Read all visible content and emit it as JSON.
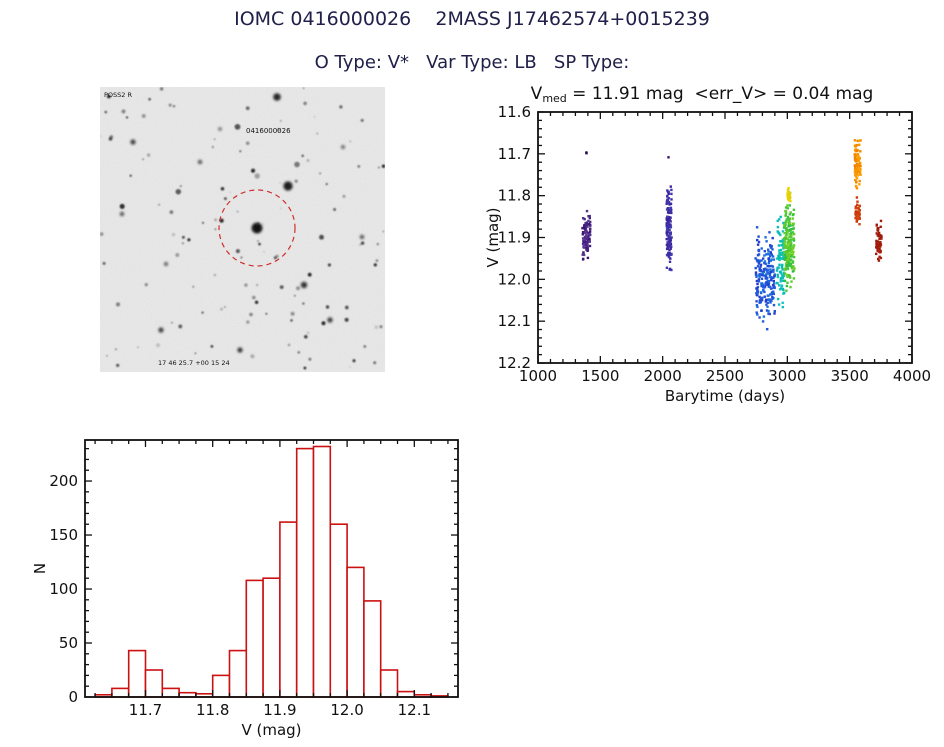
{
  "header": {
    "title": "IOMC 0416000026    2MASS J17462574+0015239",
    "subtitle": "O Type: V*   Var Type: LB   SP Type:"
  },
  "finder": {
    "label_top_left": "POSS2 R",
    "source_label": "0416000026",
    "label_bottom": "17 46 25.7  +00 15 24",
    "circle_color": "#cf2f2f"
  },
  "chart_data": [
    {
      "name": "lightcurve",
      "type": "scatter",
      "title_var": "V",
      "title_var_sub": "med",
      "title_rest": " = 11.91 mag  <err_V> = 0.04 mag",
      "xlabel": "Barytime (days)",
      "ylabel": "V (mag)",
      "x_range": [
        1000,
        4000
      ],
      "y_range": [
        11.6,
        12.2
      ],
      "y_inverted_magnitude_axis": true,
      "x_ticks": [
        1000,
        1500,
        2000,
        2500,
        3000,
        3500,
        4000
      ],
      "x_tick_labels": [
        "1000",
        "1500",
        "2000",
        "2500",
        "3000",
        "3500",
        "4000"
      ],
      "y_ticks": [
        11.6,
        11.7,
        11.8,
        11.9,
        12.0,
        12.1,
        12.2
      ],
      "y_tick_labels": [
        "11.6",
        "11.7",
        "11.8",
        "11.9",
        "12.0",
        "12.1",
        "12.2"
      ],
      "x_minor_step": 100,
      "y_minor_step": 0.02,
      "clusters": [
        {
          "x": [
            1357,
            1420
          ],
          "y": [
            11.815,
            11.975
          ],
          "n": 95,
          "colors": [
            "#38106e",
            "#5a3c96"
          ]
        },
        {
          "x": [
            1383,
            1396
          ],
          "y": [
            11.693,
            11.703
          ],
          "n": 2,
          "colors": [
            "#2a0a50",
            "#2a0a50"
          ]
        },
        {
          "x": [
            2032,
            2072
          ],
          "y": [
            11.752,
            12.012
          ],
          "n": 120,
          "colors": [
            "#3c1e96",
            "#4141b4"
          ]
        },
        {
          "x": [
            2042,
            2052
          ],
          "y": [
            11.705,
            11.715
          ],
          "n": 1,
          "colors": [
            "#38106e",
            "#38106e"
          ]
        },
        {
          "x": [
            2745,
            2900
          ],
          "y": [
            11.852,
            12.135
          ],
          "n": 210,
          "colors": [
            "#2332cd",
            "#1e78e1"
          ]
        },
        {
          "x": [
            2915,
            2975
          ],
          "y": [
            11.82,
            12.105
          ],
          "n": 90,
          "colors": [
            "#00b9ad",
            "#19c3c3"
          ]
        },
        {
          "x": [
            2975,
            3058
          ],
          "y": [
            11.765,
            12.06
          ],
          "n": 190,
          "colors": [
            "#28be46",
            "#78d223"
          ]
        },
        {
          "x": [
            3002,
            3026
          ],
          "y": [
            11.77,
            11.825
          ],
          "n": 30,
          "colors": [
            "#e1cd00",
            "#edd900"
          ]
        },
        {
          "x": [
            3540,
            3588
          ],
          "y": [
            11.643,
            11.8
          ],
          "n": 95,
          "colors": [
            "#ffa500",
            "#f08000"
          ]
        },
        {
          "x": [
            3546,
            3582
          ],
          "y": [
            11.8,
            11.885
          ],
          "n": 45,
          "colors": [
            "#d24614",
            "#c83200"
          ]
        },
        {
          "x": [
            3712,
            3756
          ],
          "y": [
            11.848,
            11.962
          ],
          "n": 55,
          "colors": [
            "#aa1e0f",
            "#99190a"
          ]
        }
      ]
    },
    {
      "name": "histogram",
      "type": "bar",
      "xlabel": "V (mag)",
      "ylabel": "N",
      "x_range": [
        11.61,
        12.165
      ],
      "y_range": [
        0,
        238
      ],
      "x_ticks": [
        11.7,
        11.8,
        11.9,
        12.0,
        12.1
      ],
      "x_tick_labels": [
        "11.7",
        "11.8",
        "11.9",
        "12.0",
        "12.1"
      ],
      "y_ticks": [
        0,
        50,
        100,
        150,
        200
      ],
      "y_tick_labels": [
        "0",
        "50",
        "100",
        "150",
        "200"
      ],
      "x_minor_step": 0.025,
      "y_minor_step": 10,
      "bin_start": 11.625,
      "bin_width": 0.025,
      "counts": [
        2,
        8,
        43,
        25,
        8,
        4,
        3,
        20,
        43,
        108,
        110,
        162,
        230,
        232,
        160,
        120,
        89,
        25,
        5,
        2,
        1
      ],
      "bar_color": "#cc1111"
    }
  ]
}
